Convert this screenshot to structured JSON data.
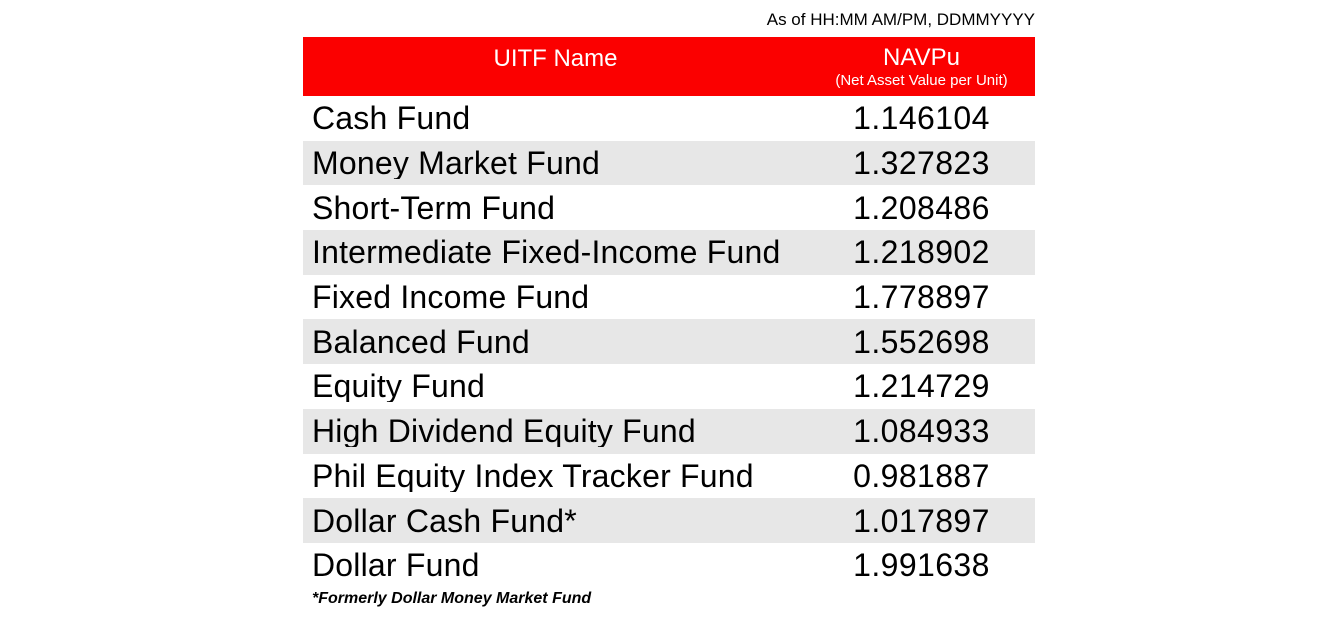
{
  "header": {
    "as_of": "As of HH:MM AM/PM, DDMMYYYY"
  },
  "table": {
    "columns": [
      {
        "label": "UITF Name"
      },
      {
        "label": "NAVPu",
        "sublabel": "(Net Asset Value per Unit)"
      }
    ],
    "rows": [
      {
        "name": "Cash Fund",
        "value": "1.146104"
      },
      {
        "name": "Money Market Fund",
        "value": "1.327823"
      },
      {
        "name": "Short-Term Fund",
        "value": "1.208486"
      },
      {
        "name": "Intermediate Fixed-Income Fund",
        "value": "1.218902"
      },
      {
        "name": "Fixed Income Fund",
        "value": "1.778897"
      },
      {
        "name": "Balanced Fund",
        "value": "1.552698"
      },
      {
        "name": "Equity Fund",
        "value": "1.214729"
      },
      {
        "name": "High Dividend Equity Fund",
        "value": "1.084933"
      },
      {
        "name": "Phil Equity Index Tracker Fund",
        "value": "0.981887"
      },
      {
        "name": "Dollar Cash Fund*",
        "value": "1.017897"
      },
      {
        "name": "Dollar Fund",
        "value": "1.991638"
      }
    ]
  },
  "footnote": "*Formerly Dollar Money Market Fund",
  "colors": {
    "header_red": "#fb0000",
    "row_alt_gray": "#e7e7e7"
  },
  "chart_data": {
    "type": "table",
    "title": "UITF NAVPu (Net Asset Value per Unit)",
    "as_of_label": "As of HH:MM AM/PM, DDMMYYYY",
    "columns": [
      "UITF Name",
      "NAVPu (Net Asset Value per Unit)"
    ],
    "rows": [
      [
        "Cash Fund",
        1.146104
      ],
      [
        "Money Market Fund",
        1.327823
      ],
      [
        "Short-Term Fund",
        1.208486
      ],
      [
        "Intermediate Fixed-Income Fund",
        1.218902
      ],
      [
        "Fixed Income Fund",
        1.778897
      ],
      [
        "Balanced Fund",
        1.552698
      ],
      [
        "Equity Fund",
        1.214729
      ],
      [
        "High Dividend Equity Fund",
        1.084933
      ],
      [
        "Phil Equity Index Tracker Fund",
        0.981887
      ],
      [
        "Dollar Cash Fund*",
        1.017897
      ],
      [
        "Dollar Fund",
        1.991638
      ]
    ],
    "footnote": "*Formerly Dollar Money Market Fund",
    "layout": {
      "zebra_striping": true,
      "first_row_background": "white",
      "header_background": "#fb0000"
    }
  }
}
